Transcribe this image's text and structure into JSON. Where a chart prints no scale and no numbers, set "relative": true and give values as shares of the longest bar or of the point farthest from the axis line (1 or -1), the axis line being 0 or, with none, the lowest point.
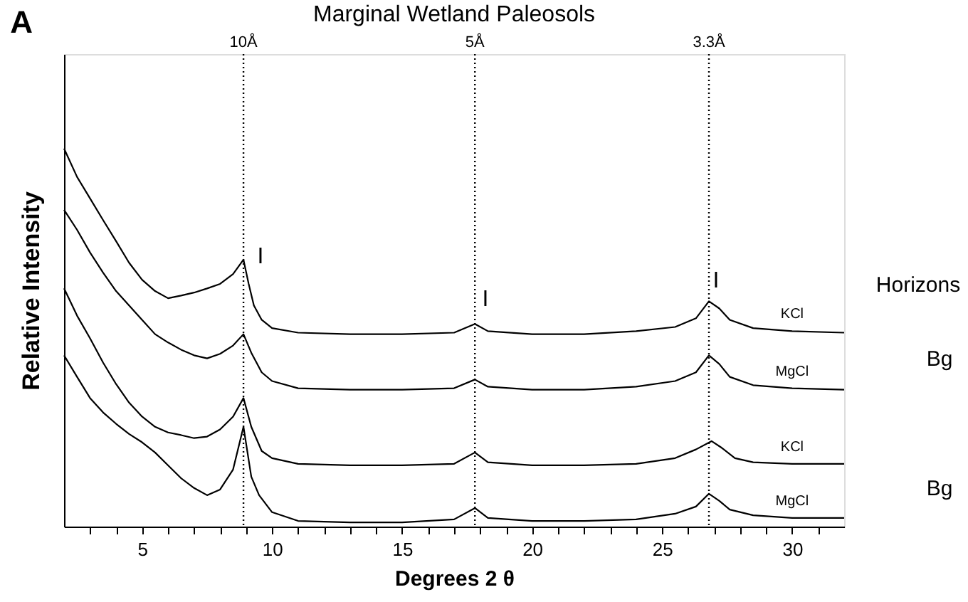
{
  "chart_data": {
    "type": "line",
    "title": "Marginal Wetland Paleosols",
    "xlabel": "Degrees 2 θ",
    "ylabel": "Relative Intensity",
    "relative": true,
    "xlim": [
      2,
      32
    ],
    "xticks": [
      {
        "value": 3,
        "label": null
      },
      {
        "value": 4,
        "label": null
      },
      5,
      {
        "value": 6,
        "label": null
      },
      {
        "value": 7,
        "label": null
      },
      {
        "value": 8,
        "label": null
      },
      {
        "value": 9,
        "label": null
      },
      10,
      {
        "value": 11,
        "label": null
      },
      {
        "value": 12,
        "label": null
      },
      {
        "value": 13,
        "label": null
      },
      {
        "value": 14,
        "label": null
      },
      15,
      {
        "value": 16,
        "label": null
      },
      {
        "value": 17,
        "label": null
      },
      {
        "value": 18,
        "label": null
      },
      {
        "value": 19,
        "label": null
      },
      20,
      {
        "value": 21,
        "label": null
      },
      {
        "value": 22,
        "label": null
      },
      {
        "value": 23,
        "label": null
      },
      {
        "value": 24,
        "label": null
      },
      25,
      {
        "value": 26,
        "label": null
      },
      {
        "value": 27,
        "label": null
      },
      {
        "value": 28,
        "label": null
      },
      {
        "value": 29,
        "label": null
      },
      30,
      {
        "value": 31,
        "label": null
      }
    ],
    "grid": false,
    "marker": "none",
    "line_style": "solid",
    "series": [
      {
        "name": "KCl",
        "color": "#000000",
        "x": [
          2,
          2.5,
          3,
          3.5,
          4,
          4.5,
          5,
          5.5,
          6,
          6.5,
          7,
          7.5,
          8,
          8.5,
          8.9,
          9.1,
          9.3,
          9.6,
          10,
          11,
          13,
          15,
          17,
          17.8,
          18.3,
          20,
          22,
          24,
          25.5,
          26.3,
          26.8,
          27.2,
          27.6,
          28.5,
          30,
          32
        ],
        "values": [
          1.0,
          0.925,
          0.868,
          0.811,
          0.755,
          0.698,
          0.653,
          0.623,
          0.604,
          0.611,
          0.619,
          0.63,
          0.642,
          0.668,
          0.706,
          0.642,
          0.585,
          0.547,
          0.525,
          0.513,
          0.509,
          0.509,
          0.513,
          0.536,
          0.517,
          0.509,
          0.509,
          0.517,
          0.528,
          0.551,
          0.596,
          0.577,
          0.547,
          0.525,
          0.517,
          0.513
        ]
      },
      {
        "name": "MgCl",
        "color": "#000000",
        "x": [
          2,
          2.5,
          3,
          3.5,
          4,
          4.5,
          5,
          5.5,
          6,
          6.5,
          7,
          7.5,
          8,
          8.5,
          8.9,
          9.2,
          9.6,
          10,
          11,
          13,
          15,
          17,
          17.8,
          18.3,
          20,
          22,
          24,
          25.5,
          26.3,
          26.8,
          27.2,
          27.6,
          28.5,
          30,
          32
        ],
        "values": [
          0.838,
          0.785,
          0.725,
          0.672,
          0.623,
          0.585,
          0.547,
          0.509,
          0.487,
          0.468,
          0.453,
          0.445,
          0.457,
          0.479,
          0.509,
          0.46,
          0.408,
          0.385,
          0.366,
          0.362,
          0.362,
          0.366,
          0.389,
          0.37,
          0.362,
          0.362,
          0.37,
          0.385,
          0.408,
          0.453,
          0.43,
          0.396,
          0.374,
          0.366,
          0.362
        ]
      },
      {
        "name": "KCl",
        "color": "#000000",
        "x": [
          2,
          2.5,
          3,
          3.5,
          4,
          4.5,
          5,
          5.5,
          6,
          6.5,
          7,
          7.5,
          8,
          8.5,
          8.9,
          9.2,
          9.6,
          10,
          11,
          13,
          15,
          17,
          17.8,
          18.3,
          20,
          22,
          24,
          25.5,
          26.3,
          26.9,
          27.3,
          27.8,
          28.5,
          30,
          32
        ],
        "values": [
          0.63,
          0.558,
          0.498,
          0.434,
          0.377,
          0.328,
          0.291,
          0.264,
          0.249,
          0.242,
          0.234,
          0.238,
          0.257,
          0.291,
          0.34,
          0.264,
          0.2,
          0.181,
          0.166,
          0.162,
          0.162,
          0.166,
          0.196,
          0.17,
          0.162,
          0.162,
          0.166,
          0.181,
          0.204,
          0.226,
          0.208,
          0.181,
          0.17,
          0.166,
          0.166
        ]
      },
      {
        "name": "MgCl",
        "color": "#000000",
        "x": [
          2,
          2.5,
          3,
          3.5,
          4,
          4.5,
          5,
          5.5,
          6,
          6.5,
          7,
          7.5,
          8,
          8.5,
          8.9,
          9.2,
          9.5,
          10,
          11,
          13,
          15,
          17,
          17.8,
          18.3,
          20,
          22,
          24,
          25.5,
          26.3,
          26.8,
          27.2,
          27.6,
          28.5,
          30,
          32
        ],
        "values": [
          0.453,
          0.396,
          0.34,
          0.302,
          0.272,
          0.245,
          0.223,
          0.196,
          0.162,
          0.128,
          0.102,
          0.083,
          0.098,
          0.151,
          0.264,
          0.132,
          0.083,
          0.038,
          0.015,
          0.011,
          0.011,
          0.019,
          0.049,
          0.023,
          0.015,
          0.015,
          0.019,
          0.034,
          0.053,
          0.087,
          0.068,
          0.045,
          0.03,
          0.023,
          0.023
        ]
      }
    ],
    "ref_lines": [
      {
        "axis": "x",
        "value": 8.9,
        "label": "10Å",
        "line_style": "dotted",
        "color": "#000000"
      },
      {
        "axis": "x",
        "value": 17.8,
        "label": "5Å",
        "line_style": "dotted",
        "color": "#000000"
      },
      {
        "axis": "x",
        "value": 26.8,
        "label": "3.3Å",
        "line_style": "dotted",
        "color": "#000000"
      }
    ],
    "annotations": [
      "A",
      "I",
      "I",
      "I",
      "Horizons",
      "Bg",
      "Bg"
    ]
  }
}
